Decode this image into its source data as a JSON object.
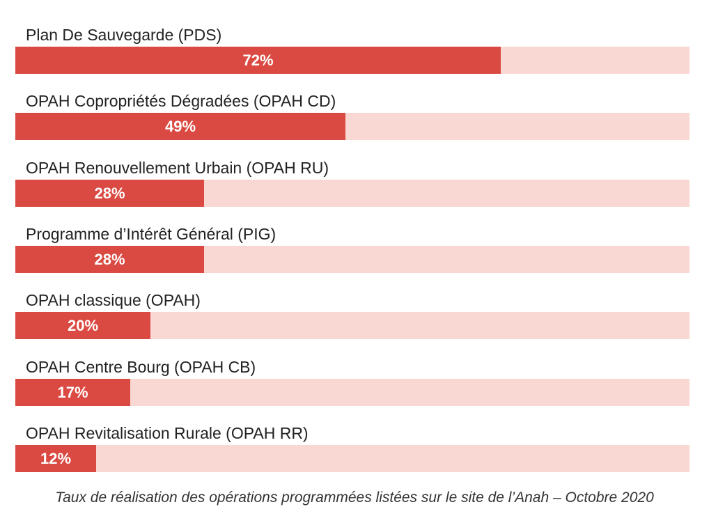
{
  "colors": {
    "fill": "#db4a42",
    "track": "#f9d8d3"
  },
  "chart_data": {
    "type": "bar",
    "orientation": "horizontal",
    "categories": [
      "Plan De Sauvegarde (PDS)",
      "OPAH Copropriétés Dégradées (OPAH CD)",
      "OPAH Renouvellement Urbain (OPAH RU)",
      "Programme d’Intérêt Général (PIG)",
      "OPAH classique (OPAH)",
      "OPAH Centre Bourg (OPAH CB)",
      "OPAH Revitalisation Rurale (OPAH RR)"
    ],
    "values": [
      72,
      49,
      28,
      28,
      20,
      17,
      12
    ],
    "value_labels": [
      "72%",
      "49%",
      "28%",
      "28%",
      "20%",
      "17%",
      "12%"
    ],
    "xlim": [
      0,
      100
    ],
    "grid": false,
    "legend": "none"
  },
  "caption": "Taux de réalisation des opérations programmées listées sur le site de l’Anah – Octobre 2020"
}
